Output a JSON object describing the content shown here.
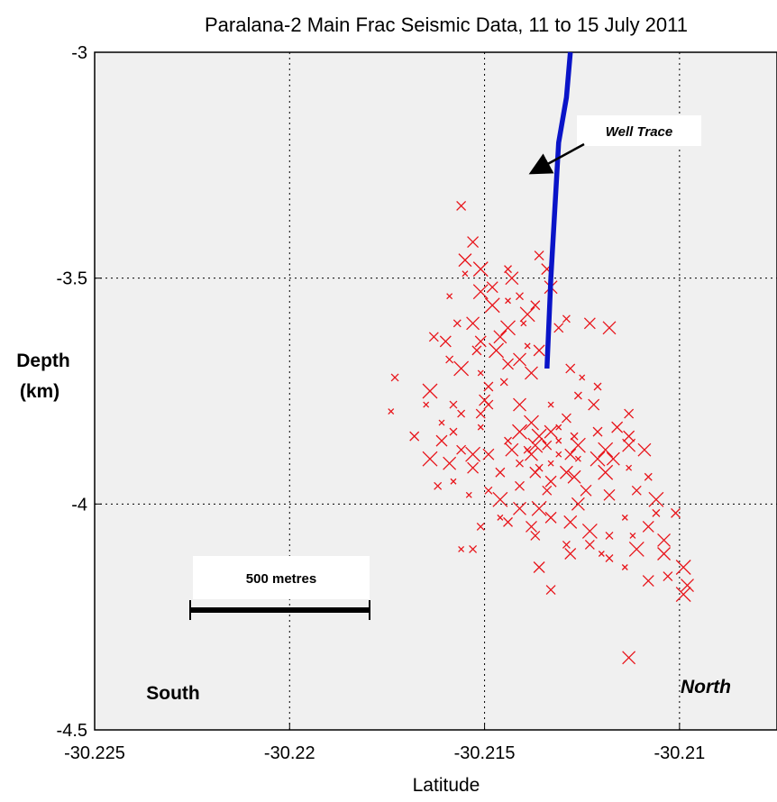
{
  "chart_data": {
    "type": "scatter",
    "title": "Paralana-2 Main Frac Seismic Data, 11 to 15 July 2011",
    "xlabel": "Latitude",
    "ylabel_lines": [
      "Depth",
      "(km)"
    ],
    "xlim": [
      -30.225,
      -30.2075
    ],
    "ylim": [
      -4.5,
      -3
    ],
    "xticks": [
      -30.225,
      -30.22,
      -30.215,
      -30.21
    ],
    "xtick_labels": [
      "-30.225",
      "-30.22",
      "-30.215",
      "-30.21"
    ],
    "yticks": [
      -4.5,
      -4,
      -3.5,
      -3
    ],
    "ytick_labels": [
      "-4.5",
      "-4",
      "-3.5",
      "-3"
    ],
    "grid": true,
    "colors": {
      "events": "#e8141a",
      "well": "#0a14c8",
      "background": "#f0f0f0"
    },
    "series": [
      {
        "marker": "x",
        "points": [
          [
            -30.2174,
            -3.795
          ],
          [
            -30.2173,
            -3.72
          ],
          [
            -30.2156,
            -3.34
          ],
          [
            -30.2153,
            -3.42
          ],
          [
            -30.2155,
            -3.46
          ],
          [
            -30.2151,
            -3.48
          ],
          [
            -30.2155,
            -3.49
          ],
          [
            -30.2144,
            -3.48
          ],
          [
            -30.2136,
            -3.45
          ],
          [
            -30.2134,
            -3.48
          ],
          [
            -30.2143,
            -3.5
          ],
          [
            -30.2151,
            -3.53
          ],
          [
            -30.2159,
            -3.54
          ],
          [
            -30.2157,
            -3.6
          ],
          [
            -30.2163,
            -3.63
          ],
          [
            -30.216,
            -3.64
          ],
          [
            -30.2153,
            -3.6
          ],
          [
            -30.2148,
            -3.56
          ],
          [
            -30.2144,
            -3.55
          ],
          [
            -30.2141,
            -3.54
          ],
          [
            -30.2137,
            -3.56
          ],
          [
            -30.2151,
            -3.64
          ],
          [
            -30.2146,
            -3.63
          ],
          [
            -30.2144,
            -3.61
          ],
          [
            -30.214,
            -3.6
          ],
          [
            -30.2129,
            -3.59
          ],
          [
            -30.2131,
            -3.61
          ],
          [
            -30.2136,
            -3.66
          ],
          [
            -30.2141,
            -3.68
          ],
          [
            -30.2156,
            -3.7
          ],
          [
            -30.2151,
            -3.71
          ],
          [
            -30.2145,
            -3.73
          ],
          [
            -30.2128,
            -3.7
          ],
          [
            -30.2123,
            -3.6
          ],
          [
            -30.2118,
            -3.61
          ],
          [
            -30.2164,
            -3.75
          ],
          [
            -30.2165,
            -3.78
          ],
          [
            -30.2156,
            -3.8
          ],
          [
            -30.2151,
            -3.8
          ],
          [
            -30.215,
            -3.77
          ],
          [
            -30.2141,
            -3.78
          ],
          [
            -30.2138,
            -3.82
          ],
          [
            -30.2133,
            -3.78
          ],
          [
            -30.2126,
            -3.76
          ],
          [
            -30.2129,
            -3.81
          ],
          [
            -30.2122,
            -3.78
          ],
          [
            -30.2133,
            -3.84
          ],
          [
            -30.2141,
            -3.84
          ],
          [
            -30.2151,
            -3.83
          ],
          [
            -30.2158,
            -3.84
          ],
          [
            -30.2156,
            -3.88
          ],
          [
            -30.2149,
            -3.89
          ],
          [
            -30.2143,
            -3.88
          ],
          [
            -30.2137,
            -3.87
          ],
          [
            -30.2131,
            -3.86
          ],
          [
            -30.2127,
            -3.85
          ],
          [
            -30.2121,
            -3.84
          ],
          [
            -30.2116,
            -3.83
          ],
          [
            -30.2113,
            -3.87
          ],
          [
            -30.2119,
            -3.88
          ],
          [
            -30.2126,
            -3.9
          ],
          [
            -30.2136,
            -3.92
          ],
          [
            -30.2146,
            -3.93
          ],
          [
            -30.2153,
            -3.92
          ],
          [
            -30.2159,
            -3.91
          ],
          [
            -30.2164,
            -3.9
          ],
          [
            -30.2158,
            -3.95
          ],
          [
            -30.2149,
            -3.97
          ],
          [
            -30.2141,
            -3.96
          ],
          [
            -30.2133,
            -3.95
          ],
          [
            -30.2127,
            -3.94
          ],
          [
            -30.2119,
            -3.93
          ],
          [
            -30.2113,
            -3.92
          ],
          [
            -30.2108,
            -3.94
          ],
          [
            -30.2111,
            -3.97
          ],
          [
            -30.2118,
            -3.98
          ],
          [
            -30.2126,
            -4.0
          ],
          [
            -30.2136,
            -4.01
          ],
          [
            -30.2146,
            -4.03
          ],
          [
            -30.2151,
            -4.05
          ],
          [
            -30.2144,
            -4.04
          ],
          [
            -30.2138,
            -4.05
          ],
          [
            -30.2128,
            -4.04
          ],
          [
            -30.2123,
            -4.06
          ],
          [
            -30.2114,
            -4.03
          ],
          [
            -30.2106,
            -4.02
          ],
          [
            -30.2101,
            -4.02
          ],
          [
            -30.2108,
            -4.05
          ],
          [
            -30.2104,
            -4.08
          ],
          [
            -30.2111,
            -4.1
          ],
          [
            -30.212,
            -4.11
          ],
          [
            -30.2129,
            -4.09
          ],
          [
            -30.2137,
            -4.07
          ],
          [
            -30.2128,
            -4.11
          ],
          [
            -30.2104,
            -4.11
          ],
          [
            -30.2099,
            -4.14
          ],
          [
            -30.2114,
            -4.14
          ],
          [
            -30.2118,
            -4.12
          ],
          [
            -30.2103,
            -4.16
          ],
          [
            -30.2108,
            -4.17
          ],
          [
            -30.2098,
            -4.18
          ],
          [
            -30.2099,
            -4.2
          ],
          [
            -30.2156,
            -4.1
          ],
          [
            -30.2153,
            -4.1
          ],
          [
            -30.2133,
            -4.19
          ],
          [
            -30.2136,
            -4.14
          ],
          [
            -30.2113,
            -4.34
          ],
          [
            -30.2146,
            -3.99
          ],
          [
            -30.2154,
            -3.98
          ],
          [
            -30.2162,
            -3.96
          ],
          [
            -30.2168,
            -3.85
          ],
          [
            -30.2161,
            -3.86
          ],
          [
            -30.2138,
            -3.89
          ],
          [
            -30.2136,
            -3.85
          ],
          [
            -30.2131,
            -3.89
          ],
          [
            -30.2141,
            -3.91
          ],
          [
            -30.2134,
            -3.97
          ],
          [
            -30.2124,
            -3.97
          ],
          [
            -30.2117,
            -3.9
          ],
          [
            -30.2121,
            -3.9
          ],
          [
            -30.2131,
            -3.83
          ],
          [
            -30.2144,
            -3.86
          ],
          [
            -30.2149,
            -3.74
          ],
          [
            -30.2144,
            -3.69
          ],
          [
            -30.2138,
            -3.71
          ],
          [
            -30.2147,
            -3.66
          ],
          [
            -30.2139,
            -3.65
          ],
          [
            -30.2159,
            -3.68
          ],
          [
            -30.2152,
            -3.66
          ],
          [
            -30.2148,
            -3.52
          ],
          [
            -30.2133,
            -3.52
          ],
          [
            -30.2139,
            -3.58
          ],
          [
            -30.2125,
            -3.72
          ],
          [
            -30.2121,
            -3.74
          ],
          [
            -30.2113,
            -3.8
          ],
          [
            -30.2113,
            -3.85
          ],
          [
            -30.2109,
            -3.88
          ],
          [
            -30.2106,
            -3.99
          ],
          [
            -30.2112,
            -4.07
          ],
          [
            -30.2118,
            -4.07
          ],
          [
            -30.2123,
            -4.09
          ],
          [
            -30.2133,
            -4.03
          ],
          [
            -30.2141,
            -4.01
          ],
          [
            -30.2153,
            -3.89
          ],
          [
            -30.2161,
            -3.82
          ],
          [
            -30.2158,
            -3.78
          ],
          [
            -30.2149,
            -3.78
          ],
          [
            -30.2137,
            -3.93
          ],
          [
            -30.2129,
            -3.93
          ],
          [
            -30.2126,
            -3.87
          ],
          [
            -30.2133,
            -3.91
          ],
          [
            -30.2139,
            -3.88
          ],
          [
            -30.2134,
            -3.87
          ],
          [
            -30.2128,
            -3.89
          ]
        ]
      },
      {
        "marker": "line",
        "x": [
          -30.2128,
          -30.2129,
          -30.2131,
          -30.2132,
          -30.2133,
          -30.2134
        ],
        "y": [
          -3.0,
          -3.1,
          -3.2,
          -3.35,
          -3.5,
          -3.7
        ]
      }
    ],
    "annotations": {
      "well_trace": "Well Trace",
      "scale_bar": "500 metres",
      "south": "South",
      "north": "North"
    }
  }
}
